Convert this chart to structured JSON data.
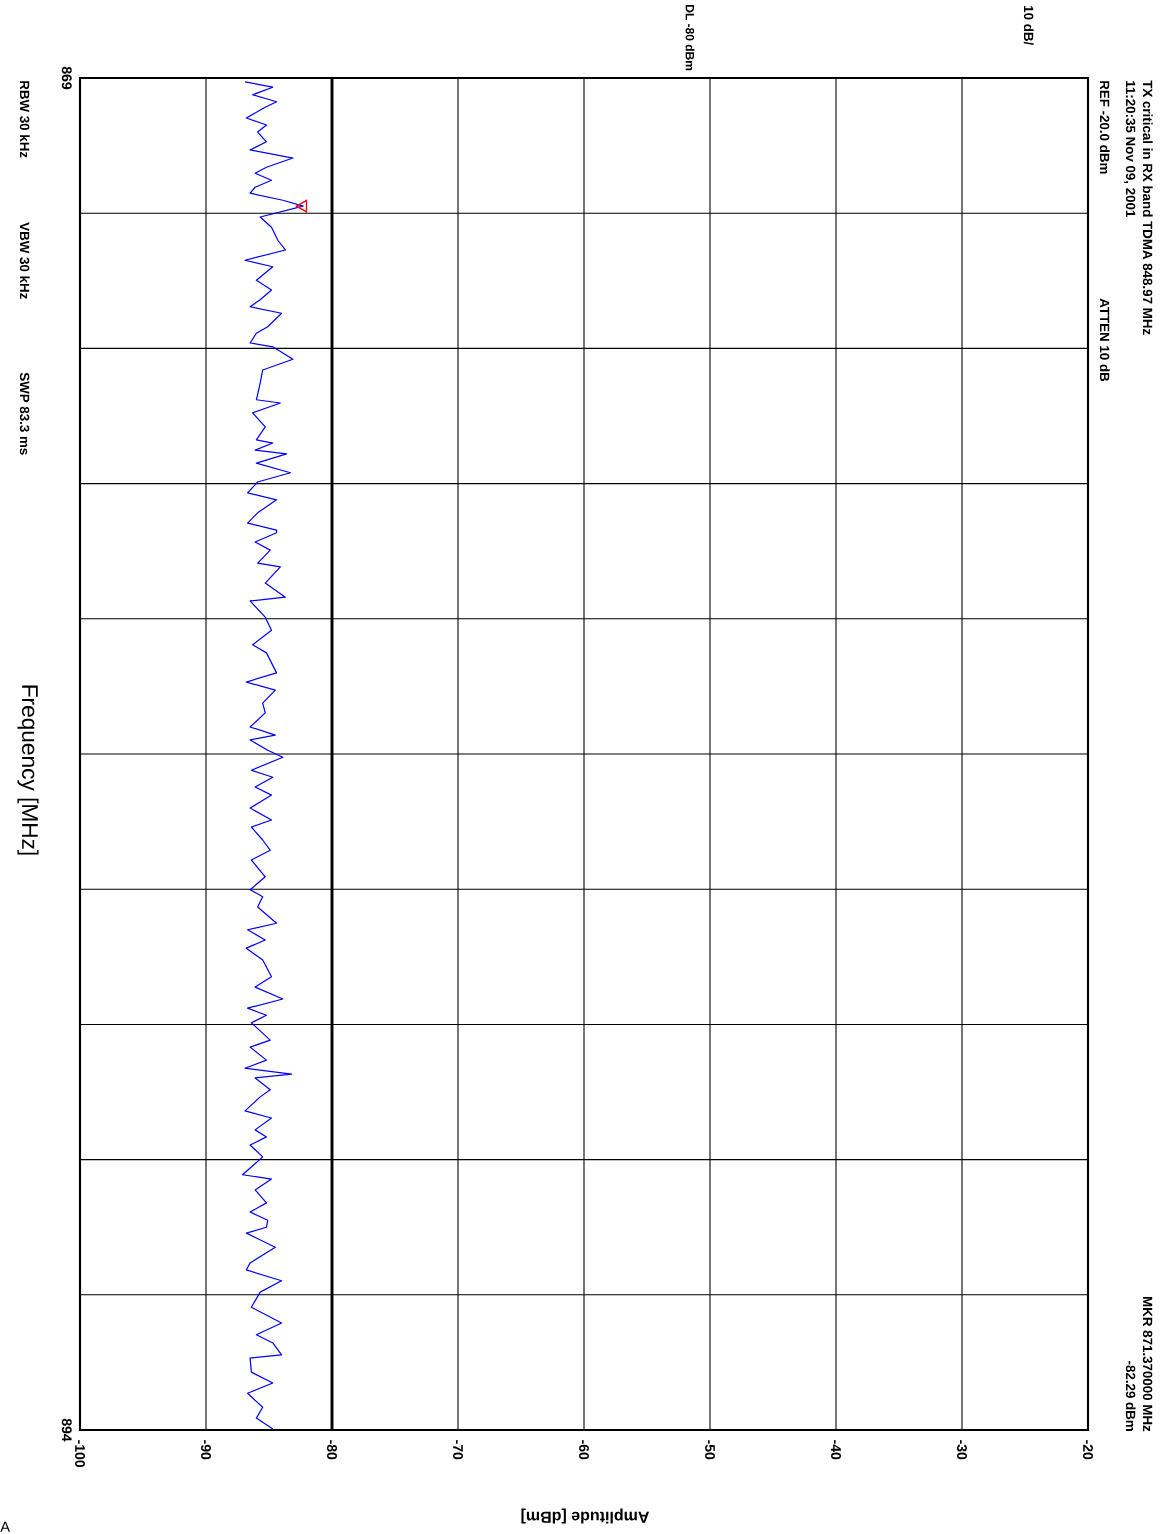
{
  "chart_data": {
    "type": "line",
    "title": "TX critical in RX band TDMA 848.97 MHz",
    "subtitle": "11:20:35 Nov 09, 2001",
    "xlabel": "Amplitude [dBm]",
    "ylabel": "Frequency [MHz]",
    "annotations": [
      "REF -20.0 dBm",
      "ATTEN 10 dB",
      "10 dB/",
      "MKR 871.370000 MHz",
      "-82.29 dBm",
      "RBW 30 kHz",
      "VBW 30 kHz",
      "SWP 83.3 ms",
      "A"
    ],
    "xlim": [
      -100,
      -20
    ],
    "ylim": [
      894,
      869
    ],
    "xticks": [
      -100,
      -90,
      -80,
      -70,
      -60,
      -50,
      -40,
      -30,
      -20
    ],
    "yticks": [
      869,
      {
        "value": 871.5,
        "label": null
      },
      {
        "value": 874,
        "label": null
      },
      {
        "value": 876.5,
        "label": null
      },
      {
        "value": 879,
        "label": null
      },
      {
        "value": 881.5,
        "label": null
      },
      {
        "value": 884,
        "label": null
      },
      {
        "value": 886.5,
        "label": null
      },
      {
        "value": 889,
        "label": null
      },
      {
        "value": 891.5,
        "label": null
      },
      894
    ],
    "grid": true,
    "ref_lines": [
      {
        "axis": "x",
        "value": -80,
        "label": "DL -80 dBm"
      }
    ],
    "series": [
      {
        "type": "line",
        "color": "#0000ff",
        "values": [
          869.07,
          869.17,
          869.31,
          869.44,
          869.54,
          869.74,
          869.87,
          870.0,
          870.18,
          870.33,
          870.48,
          870.65,
          870.76,
          870.89,
          871.02,
          871.13,
          871.26,
          871.37,
          871.57,
          871.76,
          872.0,
          872.18,
          872.37,
          872.49,
          872.74,
          872.92,
          873.1,
          873.23,
          873.35,
          873.6,
          873.72,
          873.9,
          873.97,
          874.2,
          874.4,
          874.64,
          874.95,
          875.01,
          875.19,
          875.45,
          875.69,
          875.75,
          875.88,
          875.95,
          876.12,
          876.3,
          876.47,
          876.67,
          876.8,
          877.04,
          877.23,
          877.36,
          877.41,
          877.58,
          877.73,
          877.97,
          878.04,
          878.34,
          878.6,
          878.67,
          878.97,
          879.21,
          879.48,
          879.63,
          880.0,
          880.17,
          880.32,
          880.56,
          880.74,
          881.0,
          881.15,
          881.24,
          881.43,
          881.56,
          881.8,
          881.93,
          882.11,
          882.26,
          882.5,
          882.72,
          882.85,
          883.09,
          883.28,
          883.46,
          883.77,
          884.01,
          884.14,
          884.33,
          884.63,
          884.75,
          884.94,
          885.09,
          885.31,
          885.62,
          885.81,
          886.03,
          886.2,
          886.33,
          886.47,
          886.79,
          886.92,
          887.16,
          887.31,
          887.42,
          887.49,
          887.71,
          887.84,
          888.1,
          888.23,
          888.45,
          888.58,
          888.73,
          888.95,
          889.28,
          889.36,
          889.56,
          889.8,
          889.97,
          890.12,
          890.25,
          890.36,
          890.62,
          890.91,
          891.04,
          891.24,
          891.45,
          891.73,
          892.02,
          892.24,
          892.39,
          892.61,
          892.67,
          892.93,
          893.13,
          893.32,
          893.58,
          893.78,
          893.98
        ],
        "x": [
          -86.9,
          -84.7,
          -86.3,
          -84.4,
          -85.3,
          -86.8,
          -85.2,
          -85.9,
          -85.2,
          -86.5,
          -83.1,
          -85.2,
          -86.1,
          -84.8,
          -86.1,
          -86.5,
          -83.9,
          -82.29,
          -85.7,
          -84.8,
          -84.3,
          -83.7,
          -86.9,
          -84.7,
          -86.0,
          -84.8,
          -85.7,
          -86.5,
          -84.0,
          -85.1,
          -86.0,
          -86.5,
          -84.7,
          -83.1,
          -85.5,
          -85.7,
          -86.0,
          -84.1,
          -86.3,
          -85.3,
          -86.0,
          -84.7,
          -86.1,
          -83.6,
          -86.0,
          -83.3,
          -85.9,
          -86.7,
          -84.4,
          -85.9,
          -86.7,
          -84.4,
          -84.4,
          -86.1,
          -84.9,
          -85.9,
          -84.1,
          -85.3,
          -83.7,
          -86.5,
          -85.3,
          -84.8,
          -86.3,
          -85.2,
          -84.4,
          -86.8,
          -84.5,
          -85.5,
          -85.3,
          -86.5,
          -84.5,
          -86.5,
          -85.1,
          -83.9,
          -86.4,
          -84.7,
          -86.1,
          -84.8,
          -86.5,
          -84.8,
          -86.4,
          -85.5,
          -84.9,
          -86.4,
          -85.3,
          -86.5,
          -85.5,
          -85.9,
          -84.4,
          -86.7,
          -85.3,
          -86.8,
          -85.5,
          -84.8,
          -86.1,
          -83.9,
          -86.7,
          -85.2,
          -86.4,
          -84.9,
          -86.5,
          -85.2,
          -86.9,
          -83.2,
          -86.1,
          -84.9,
          -85.7,
          -86.9,
          -84.8,
          -86.1,
          -85.2,
          -86.5,
          -85.5,
          -87.1,
          -84.8,
          -86.1,
          -85.2,
          -86.5,
          -85.1,
          -85.2,
          -86.8,
          -84.5,
          -86.5,
          -86.8,
          -84.0,
          -85.7,
          -86.4,
          -84.0,
          -86.0,
          -84.7,
          -84.0,
          -86.5,
          -86.4,
          -84.7,
          -86.7,
          -85.5,
          -86.0,
          -84.7
        ]
      },
      {
        "type": "scatter",
        "color": "#ff0000",
        "marker": "triangle",
        "x": [
          -82.29
        ],
        "values": [
          871.37
        ]
      }
    ]
  }
}
